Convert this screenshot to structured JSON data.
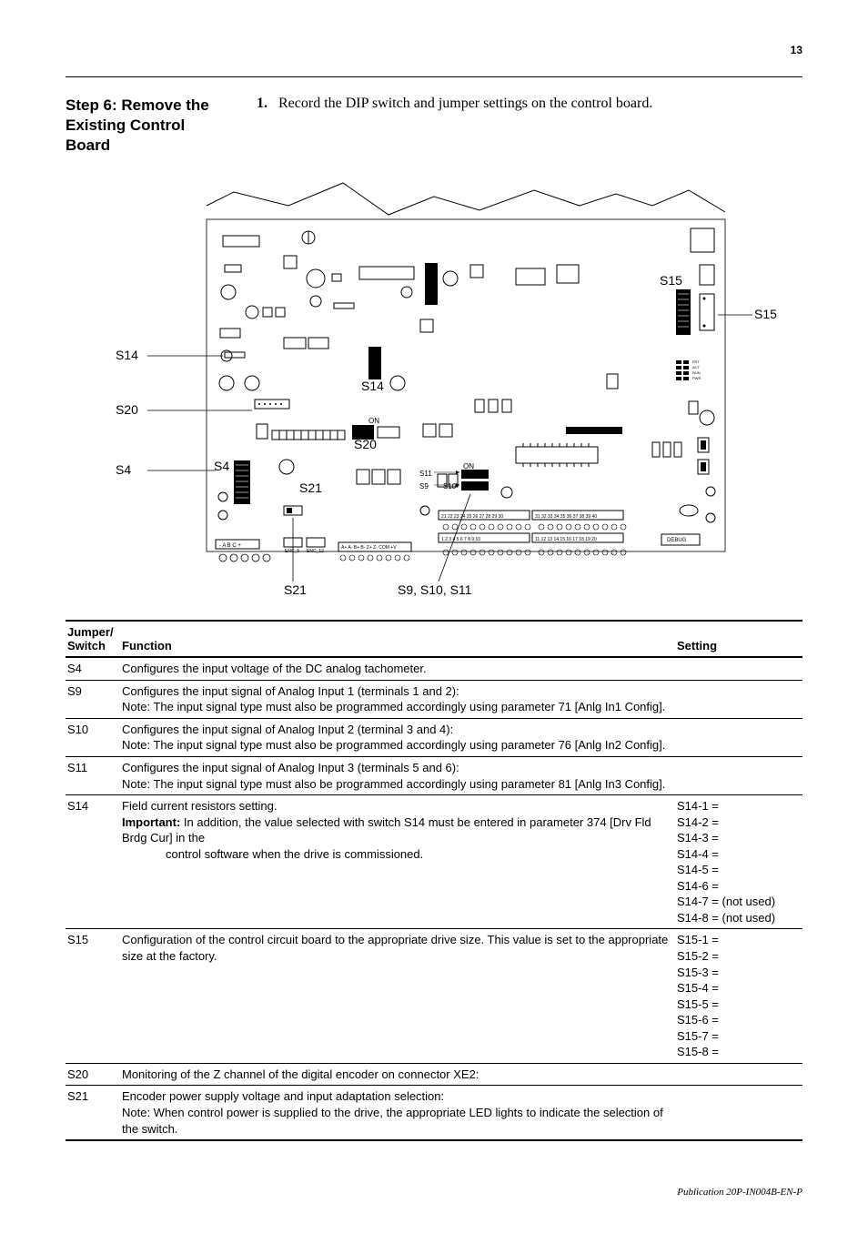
{
  "page_number": "13",
  "step_title": "Step 6:   Remove the Existing Control Board",
  "instruction_num": "1.",
  "instruction_text": "Record the DIP switch and jumper settings on the control board.",
  "diagram": {
    "labels": {
      "s14_left": "S14",
      "s20_left": "S20",
      "s4_left": "S4",
      "s4_inner": "S4",
      "s14_bottom": "S14",
      "s20_bottom": "S20",
      "s21_inner": "S21",
      "s21_bottom": "S21",
      "s9s10s11_bottom": "S9, S10, S11",
      "s15_top": "S15",
      "s15_right": "S15",
      "s11_inner": "S11",
      "s9_inner": "S9",
      "s10_inner": "S10",
      "on1": "ON",
      "on2": "ON",
      "debug": "DEBUG",
      "abc": "-   A   B  C +",
      "enc5": "ENC_5",
      "enc12": "ENC_12",
      "led_rst": "RST",
      "led_act": "ACT",
      "led_run": "RUN",
      "led_pwr": "PWR",
      "encoder_pins": "A+ A- B+ B- Z+ Z- COM +V",
      "term_row2_left": "21 22 23 24 25 26 27 28 29 30",
      "term_row2_right": "31 32 33 34 35 36 37 38 39 40",
      "term_row1_left": "1   2   3   4   5   6   7   8   9 10",
      "term_row1_right": "11 12 13 14 15 16 17 18 19 20"
    }
  },
  "table": {
    "headers": {
      "switch": "Jumper/\nSwitch",
      "function": "Function",
      "setting": "Setting"
    },
    "rows": [
      {
        "switch": "S4",
        "function_html": "Configures the input voltage of the DC analog tachometer.",
        "setting_html": ""
      },
      {
        "switch": "S9",
        "function_html": "Configures the input signal of Analog Input 1 (terminals 1 and 2):<br>Note: The input signal type must also be programmed accordingly using parameter 71 [Anlg In1 Config].",
        "setting_html": ""
      },
      {
        "switch": "S10",
        "function_html": "Configures the input signal of Analog Input 2 (terminal 3 and 4):<br>Note: The input signal type must also be programmed accordingly using parameter 76 [Anlg In2 Config].",
        "setting_html": ""
      },
      {
        "switch": "S11",
        "function_html": "Configures the input signal of Analog Input 3 (terminals 5 and 6):<br>Note: The input signal type must also be programmed accordingly using parameter 81 [Anlg In3 Config].",
        "setting_html": ""
      },
      {
        "switch": "S14",
        "function_html": "Field current resistors setting.<br><b>Important:</b> In addition, the value selected with switch S14 must be entered in parameter 374 [Drv Fld Brdg Cur] in the<br><span class=\"indent\">control software when the drive is commissioned.</span>",
        "setting_html": "S14-1 =<br>S14-2 =<br>S14-3 =<br>S14-4 =<br>S14-5 =<br>S14-6 =<br>S14-7 = (not used)<br>S14-8 = (not used)"
      },
      {
        "switch": "S15",
        "function_html": "Configuration of the control circuit board to the appropriate drive size. This value is set to the appropriate size at the factory.",
        "setting_html": "S15-1 =<br>S15-2 =<br>S15-3 =<br>S15-4 =<br>S15-5 =<br>S15-6 =<br>S15-7 =<br>S15-8 ="
      },
      {
        "switch": "S20",
        "function_html": "Monitoring of the Z channel of the digital encoder on connector XE2:",
        "setting_html": ""
      },
      {
        "switch": "S21",
        "function_html": "Encoder power supply voltage and input adaptation selection:<br>Note: When control power is supplied to the drive, the appropriate LED lights to indicate the selection of the switch.",
        "setting_html": ""
      }
    ]
  },
  "footer": "Publication 20P-IN004B-EN-P"
}
